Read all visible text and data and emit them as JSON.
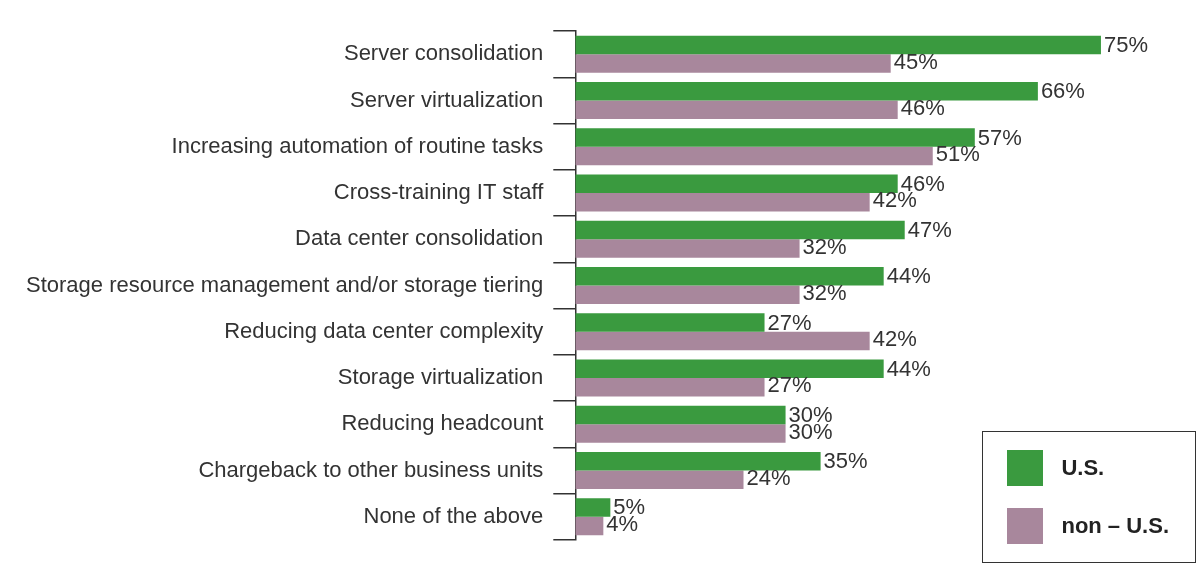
{
  "chart_data": {
    "type": "bar",
    "orientation": "horizontal",
    "categories": [
      "Server consolidation",
      "Server virtualization",
      "Increasing automation of routine tasks",
      "Cross-training IT staff",
      "Data center consolidation",
      "Storage resource management and/or storage tiering",
      "Reducing data center complexity",
      "Storage virtualization",
      "Reducing headcount",
      "Chargeback to other business units",
      "None of the above"
    ],
    "series": [
      {
        "name": "U.S.",
        "color": "#3a9a3f",
        "values": [
          75,
          66,
          57,
          46,
          47,
          44,
          27,
          44,
          30,
          35,
          5
        ],
        "value_labels": [
          "75%",
          "66%",
          "57%",
          "46%",
          "47%",
          "44%",
          "27%",
          "44%",
          "30%",
          "35%",
          "5%"
        ]
      },
      {
        "name": "non – U.S.",
        "color": "#a8879c",
        "values": [
          45,
          46,
          51,
          42,
          32,
          32,
          42,
          27,
          30,
          24,
          4
        ],
        "value_labels": [
          "45%",
          "46%",
          "51%",
          "42%",
          "32%",
          "32%",
          "42%",
          "27%",
          "30%",
          "24%",
          "4%"
        ]
      }
    ],
    "grid": false,
    "legend": "bottom right"
  }
}
